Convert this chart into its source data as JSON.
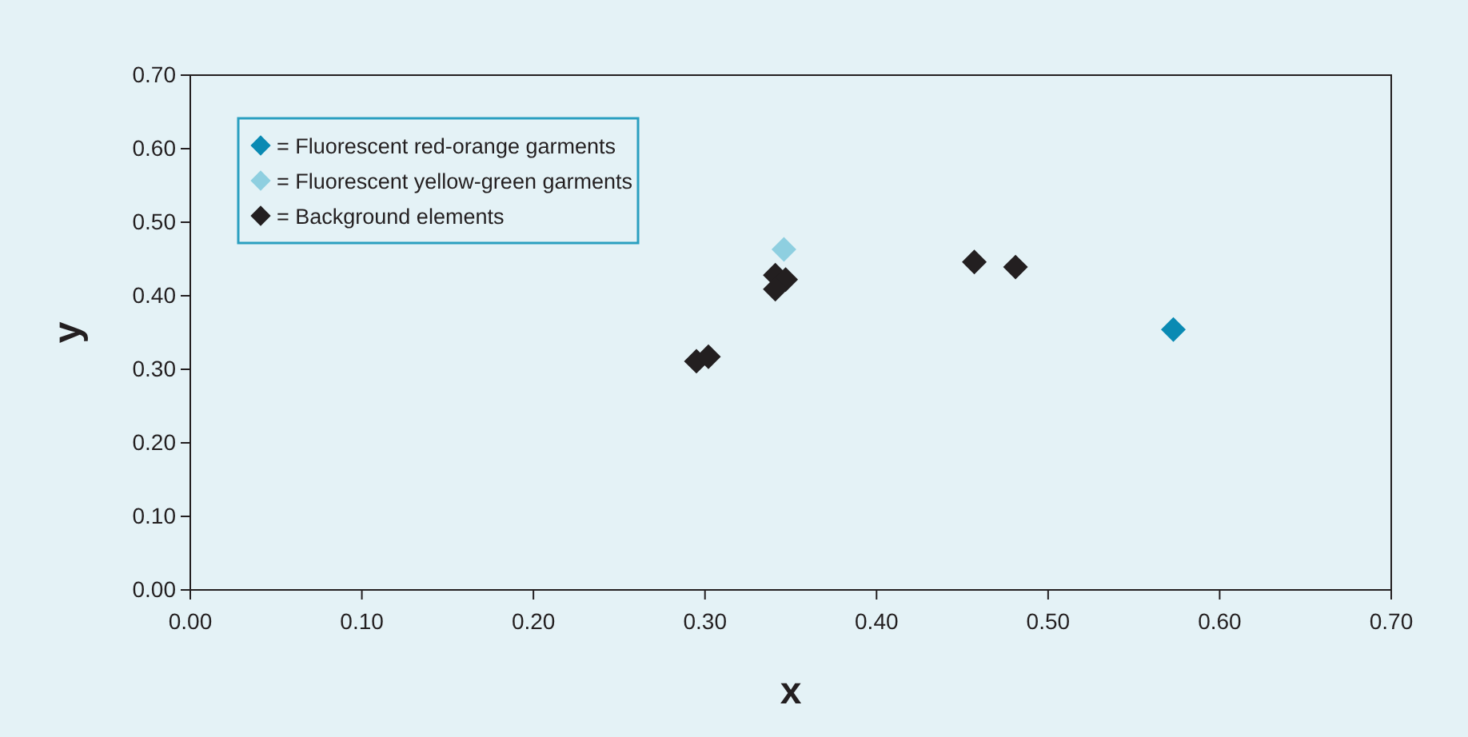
{
  "chart_data": {
    "type": "scatter",
    "xlabel": "x",
    "ylabel": "y",
    "xlim": [
      0,
      0.7
    ],
    "ylim": [
      0,
      0.7
    ],
    "xticks": [
      {
        "value": 0,
        "label": "0.00"
      },
      {
        "value": 0.1,
        "label": "0.10"
      },
      {
        "value": 0.2,
        "label": "0.20"
      },
      {
        "value": 0.3,
        "label": "0.30"
      },
      {
        "value": 0.4,
        "label": "0.40"
      },
      {
        "value": 0.5,
        "label": "0.50"
      },
      {
        "value": 0.6,
        "label": "0.60"
      },
      {
        "value": 0.7,
        "label": "0.70"
      }
    ],
    "yticks": [
      {
        "value": 0,
        "label": "0.00"
      },
      {
        "value": 0.1,
        "label": "0.10"
      },
      {
        "value": 0.2,
        "label": "0.20"
      },
      {
        "value": 0.3,
        "label": "0.30"
      },
      {
        "value": 0.4,
        "label": "0.40"
      },
      {
        "value": 0.5,
        "label": "0.50"
      },
      {
        "value": 0.6,
        "label": "0.60"
      },
      {
        "value": 0.7,
        "label": "0.70"
      }
    ],
    "marker": "diamond",
    "legend": "top left",
    "grid": false,
    "series": [
      {
        "name": "= Fluorescent red-orange garments",
        "color": "#0a8ab3",
        "x": [
          0.573
        ],
        "values": [
          0.354
        ]
      },
      {
        "name": "= Fluorescent yellow-green garments",
        "color": "#8ecfe0",
        "x": [
          0.346
        ],
        "values": [
          0.463
        ]
      },
      {
        "name": "= Background elements",
        "color": "#231f20",
        "x": [
          0.341,
          0.347,
          0.341,
          0.295,
          0.302,
          0.457,
          0.481
        ],
        "values": [
          0.428,
          0.422,
          0.409,
          0.311,
          0.317,
          0.446,
          0.439
        ]
      }
    ]
  }
}
